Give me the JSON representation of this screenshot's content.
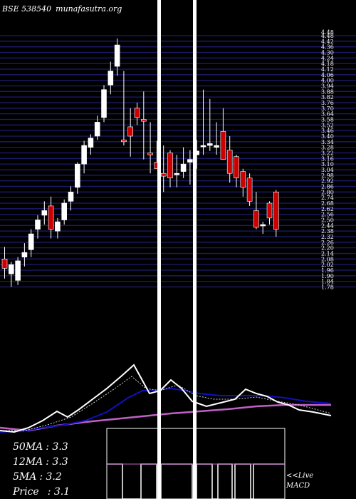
{
  "header": {
    "exchange_code": "BSE 538540",
    "site": "munafasutra.org"
  },
  "chart_data": {
    "type": "candlestick",
    "price_axis": {
      "range": [
        1.73,
        4.48
      ],
      "top_label": "4.48",
      "ticks": [
        4.48,
        4.42,
        4.36,
        4.3,
        4.24,
        4.18,
        4.12,
        4.06,
        4.0,
        3.94,
        3.88,
        3.82,
        3.76,
        3.7,
        3.64,
        3.58,
        3.52,
        3.46,
        3.4,
        3.34,
        3.28,
        3.22,
        3.16,
        3.1,
        3.04,
        2.98,
        2.92,
        2.86,
        2.8,
        2.74,
        2.68,
        2.62,
        2.56,
        2.5,
        2.44,
        2.38,
        2.32,
        2.26,
        2.2,
        2.14,
        2.08,
        2.02,
        1.96,
        1.9,
        1.84,
        1.78
      ]
    },
    "candles": [
      {
        "o": 2.08,
        "h": 2.21,
        "l": 1.87,
        "c": 1.98
      },
      {
        "o": 1.92,
        "h": 2.05,
        "l": 1.78,
        "c": 2.02
      },
      {
        "o": 1.85,
        "h": 2.1,
        "l": 1.8,
        "c": 2.06
      },
      {
        "o": 2.1,
        "h": 2.25,
        "l": 2.0,
        "c": 2.15
      },
      {
        "o": 2.18,
        "h": 2.4,
        "l": 2.1,
        "c": 2.35
      },
      {
        "o": 2.4,
        "h": 2.55,
        "l": 2.3,
        "c": 2.5
      },
      {
        "o": 2.55,
        "h": 2.7,
        "l": 2.45,
        "c": 2.6
      },
      {
        "o": 2.65,
        "h": 2.75,
        "l": 2.3,
        "c": 2.4
      },
      {
        "o": 2.38,
        "h": 2.52,
        "l": 2.3,
        "c": 2.48
      },
      {
        "o": 2.5,
        "h": 2.72,
        "l": 2.45,
        "c": 2.68
      },
      {
        "o": 2.7,
        "h": 2.86,
        "l": 2.6,
        "c": 2.8
      },
      {
        "o": 2.85,
        "h": 3.12,
        "l": 2.78,
        "c": 3.1
      },
      {
        "o": 3.1,
        "h": 3.35,
        "l": 3.0,
        "c": 3.3
      },
      {
        "o": 3.28,
        "h": 3.42,
        "l": 3.2,
        "c": 3.38
      },
      {
        "o": 3.4,
        "h": 3.62,
        "l": 3.36,
        "c": 3.55
      },
      {
        "o": 3.6,
        "h": 3.95,
        "l": 3.55,
        "c": 3.9
      },
      {
        "o": 3.95,
        "h": 4.2,
        "l": 3.85,
        "c": 4.1
      },
      {
        "o": 4.15,
        "h": 4.45,
        "l": 4.05,
        "c": 4.38
      },
      {
        "o": 3.36,
        "h": 4.1,
        "l": 3.3,
        "c": 3.34
      },
      {
        "o": 3.5,
        "h": 3.7,
        "l": 3.18,
        "c": 3.4
      },
      {
        "o": 3.7,
        "h": 3.76,
        "l": 3.52,
        "c": 3.6
      },
      {
        "o": 3.58,
        "h": 3.88,
        "l": 3.15,
        "c": 3.56
      },
      {
        "o": 3.22,
        "h": 3.55,
        "l": 3.0,
        "c": 3.2
      },
      {
        "o": 3.12,
        "h": 3.35,
        "l": 3.05,
        "c": 3.05
      },
      {
        "o": 3.0,
        "h": 3.3,
        "l": 2.8,
        "c": 2.97
      },
      {
        "o": 3.22,
        "h": 3.25,
        "l": 2.85,
        "c": 2.95
      },
      {
        "o": 3.0,
        "h": 3.2,
        "l": 2.85,
        "c": 3.0
      },
      {
        "o": 3.02,
        "h": 3.28,
        "l": 2.95,
        "c": 3.1
      },
      {
        "o": 3.12,
        "h": 3.25,
        "l": 2.88,
        "c": 3.15
      },
      {
        "o": 3.2,
        "h": 3.36,
        "l": 3.05,
        "c": 3.24
      },
      {
        "o": 3.3,
        "h": 3.9,
        "l": 3.2,
        "c": 3.3
      },
      {
        "o": 3.3,
        "h": 3.8,
        "l": 3.24,
        "c": 3.32
      },
      {
        "o": 3.28,
        "h": 3.55,
        "l": 3.2,
        "c": 3.3
      },
      {
        "o": 3.45,
        "h": 3.7,
        "l": 3.15,
        "c": 3.15
      },
      {
        "o": 3.25,
        "h": 3.4,
        "l": 2.9,
        "c": 3.0
      },
      {
        "o": 3.18,
        "h": 3.2,
        "l": 2.85,
        "c": 2.95
      },
      {
        "o": 3.02,
        "h": 3.05,
        "l": 2.75,
        "c": 2.85
      },
      {
        "o": 2.95,
        "h": 3.0,
        "l": 2.65,
        "c": 2.7
      },
      {
        "o": 2.6,
        "h": 2.8,
        "l": 2.4,
        "c": 2.42
      },
      {
        "o": 2.44,
        "h": 2.48,
        "l": 2.35,
        "c": 2.45
      },
      {
        "o": 2.68,
        "h": 2.7,
        "l": 2.45,
        "c": 2.52
      },
      {
        "o": 2.8,
        "h": 2.82,
        "l": 2.32,
        "c": 2.4
      }
    ],
    "moving_averages": [
      {
        "label": "50MA",
        "value": "3.3",
        "color": "#c060c8"
      },
      {
        "label": "12MA",
        "value": "3.3",
        "color": "#1010c0"
      },
      {
        "label": "5MA",
        "value": "3.2",
        "color": "#ffffff"
      }
    ],
    "price": {
      "label": "Price",
      "value": "3.1"
    },
    "macd_label_line1": "<<Live",
    "macd_label_line2": "MACD",
    "colors": {
      "up": "#ffffff",
      "down": "#cc0000",
      "grid": "#1c1c6e",
      "background": "#000000"
    }
  }
}
